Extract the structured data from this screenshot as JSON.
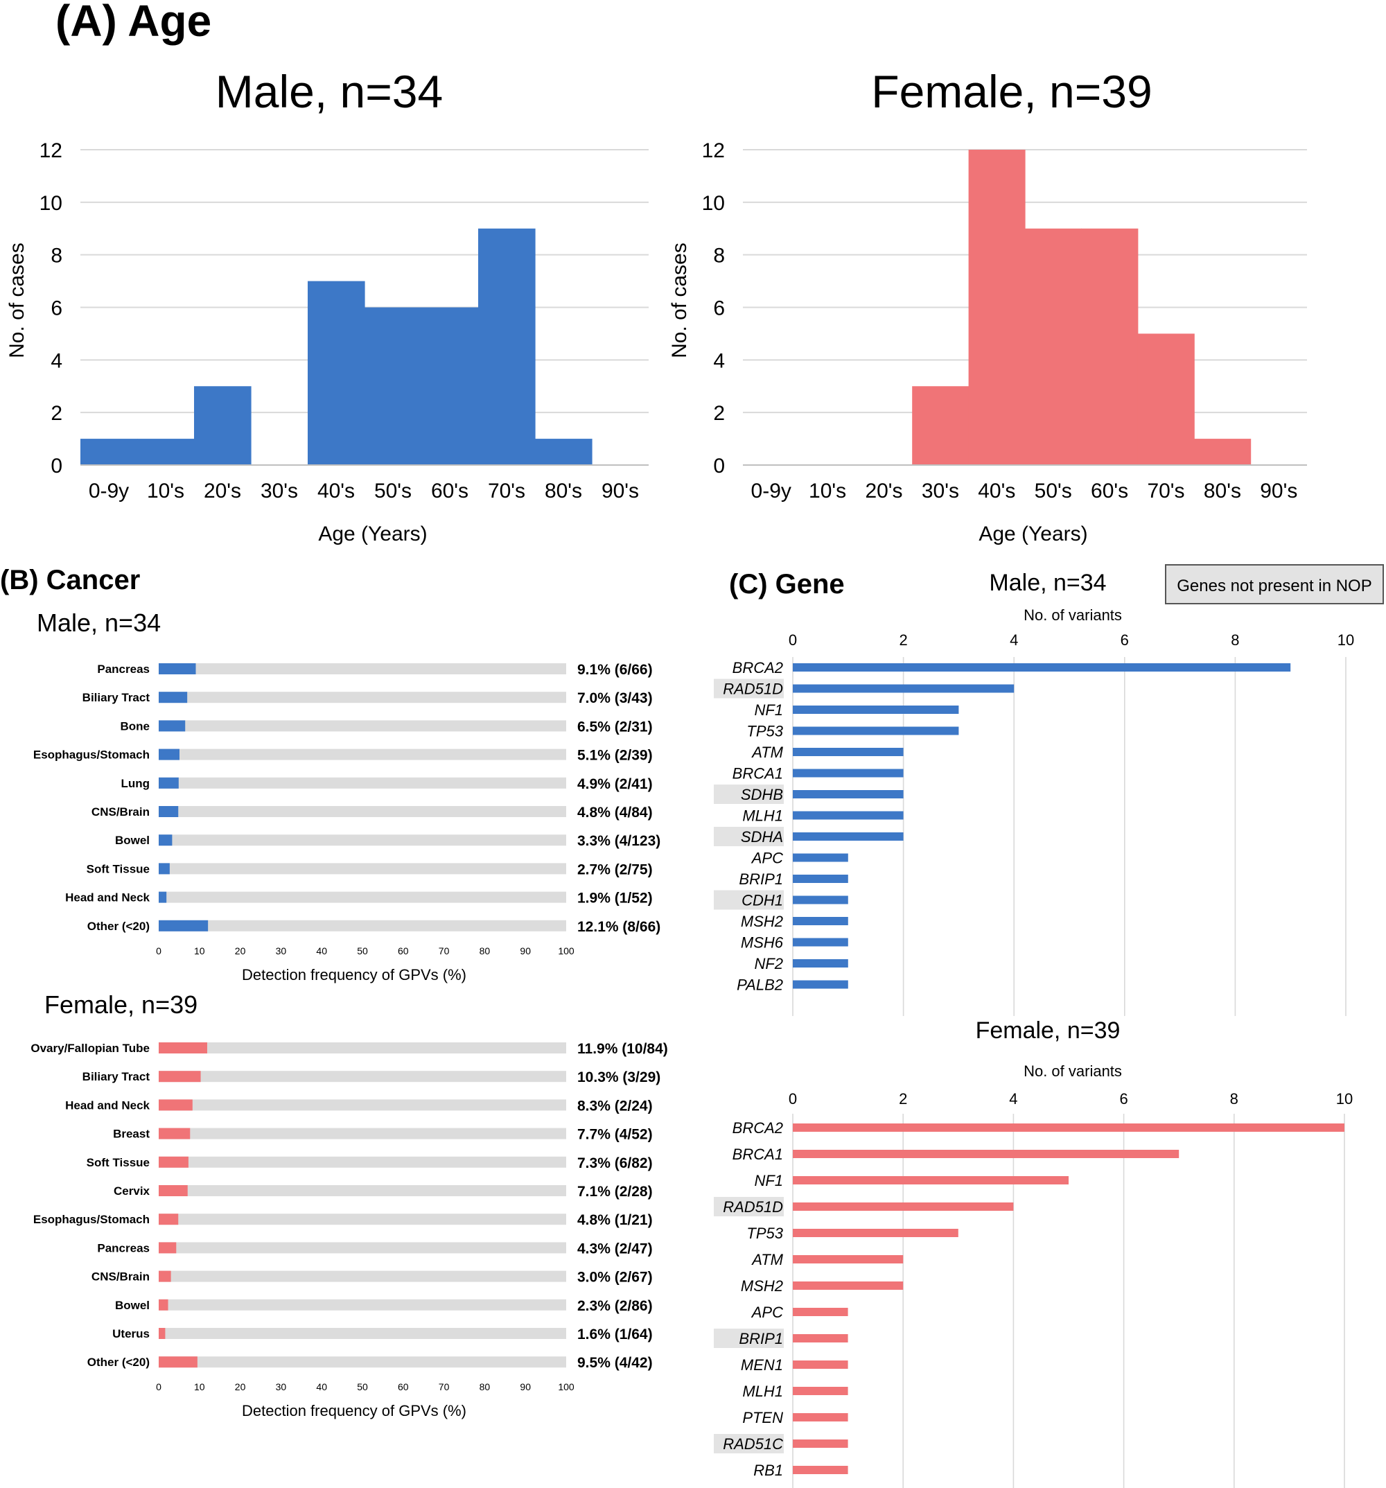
{
  "panel_a": {
    "label": "(A) Age"
  },
  "panel_b": {
    "label": "(B) Cancer"
  },
  "panel_c": {
    "label": "(C) Gene",
    "legend_box": "Genes not present in NOP"
  },
  "colors": {
    "male": "#3d78c7",
    "female": "#f07477",
    "track": "#dcdcdc",
    "grid": "#d9d9d9",
    "nop_highlight": "#e3e3e3"
  },
  "chart_data": [
    {
      "id": "age_male",
      "type": "bar",
      "title": "Male, n=34",
      "xlabel": "Age (Years)",
      "ylabel": "No. of cases",
      "ylim": [
        0,
        12
      ],
      "yticks": [
        "0",
        "2",
        "4",
        "6",
        "8",
        "10",
        "12"
      ],
      "categories": [
        "0-9y",
        "10's",
        "20's",
        "30's",
        "40's",
        "50's",
        "60's",
        "70's",
        "80's",
        "90's"
      ],
      "values": [
        1,
        1,
        3,
        0,
        7,
        6,
        6,
        9,
        1,
        0
      ],
      "grid": true
    },
    {
      "id": "age_female",
      "type": "bar",
      "title": "Female, n=39",
      "xlabel": "Age (Years)",
      "ylabel": "No. of cases",
      "ylim": [
        0,
        12
      ],
      "yticks": [
        "0",
        "2",
        "4",
        "6",
        "8",
        "10",
        "12"
      ],
      "categories": [
        "0-9y",
        "10's",
        "20's",
        "30's",
        "40's",
        "50's",
        "60's",
        "70's",
        "80's",
        "90's"
      ],
      "values": [
        0,
        0,
        0,
        3,
        12,
        9,
        9,
        5,
        1,
        0
      ],
      "grid": true
    },
    {
      "id": "cancer_male",
      "type": "bar",
      "orientation": "horizontal",
      "title": "Male, n=34",
      "xlabel": "Detection frequency of GPVs (%)",
      "xlim": [
        0,
        100
      ],
      "xticks": [
        "0",
        "10",
        "20",
        "30",
        "40",
        "50",
        "60",
        "70",
        "80",
        "90",
        "100"
      ],
      "categories": [
        "Pancreas",
        "Biliary Tract",
        "Bone",
        "Esophagus/Stomach",
        "Lung",
        "CNS/Brain",
        "Bowel",
        "Soft Tissue",
        "Head and Neck",
        "Other (<20)"
      ],
      "values": [
        9.1,
        7.0,
        6.5,
        5.1,
        4.9,
        4.8,
        3.3,
        2.7,
        1.9,
        12.1
      ],
      "data_labels": [
        "9.1% (6/66)",
        "7.0% (3/43)",
        "6.5% (2/31)",
        "5.1% (2/39)",
        "4.9% (2/41)",
        "4.8% (4/84)",
        "3.3% (4/123)",
        "2.7% (2/75)",
        "1.9% (1/52)",
        "12.1% (8/66)"
      ]
    },
    {
      "id": "cancer_female",
      "type": "bar",
      "orientation": "horizontal",
      "title": "Female, n=39",
      "xlabel": "Detection frequency of GPVs (%)",
      "xlim": [
        0,
        100
      ],
      "xticks": [
        "0",
        "10",
        "20",
        "30",
        "40",
        "50",
        "60",
        "70",
        "80",
        "90",
        "100"
      ],
      "categories": [
        "Ovary/Fallopian Tube",
        "Biliary Tract",
        "Head and Neck",
        "Breast",
        "Soft Tissue",
        "Cervix",
        "Esophagus/Stomach",
        "Pancreas",
        "CNS/Brain",
        "Bowel",
        "Uterus",
        "Other (<20)"
      ],
      "values": [
        11.9,
        10.3,
        8.3,
        7.7,
        7.3,
        7.1,
        4.8,
        4.3,
        3.0,
        2.3,
        1.6,
        9.5
      ],
      "data_labels": [
        "11.9% (10/84)",
        "10.3% (3/29)",
        "8.3% (2/24)",
        "7.7% (4/52)",
        "7.3% (6/82)",
        "7.1% (2/28)",
        "4.8% (1/21)",
        "4.3% (2/47)",
        "3.0% (2/67)",
        "2.3% (2/86)",
        "1.6% (1/64)",
        "9.5% (4/42)"
      ]
    },
    {
      "id": "gene_male",
      "type": "bar",
      "orientation": "horizontal",
      "title": "Male, n=34",
      "xlabel": "No. of variants",
      "xlim": [
        0,
        10
      ],
      "xaxis_position": "top",
      "xticks": [
        "0",
        "2",
        "4",
        "6",
        "8",
        "10"
      ],
      "categories": [
        "BRCA2",
        "RAD51D",
        "NF1",
        "TP53",
        "ATM",
        "BRCA1",
        "SDHB",
        "MLH1",
        "SDHA",
        "APC",
        "BRIP1",
        "CDH1",
        "MSH2",
        "MSH6",
        "NF2",
        "PALB2"
      ],
      "values": [
        9,
        4,
        3,
        3,
        2,
        2,
        2,
        2,
        2,
        1,
        1,
        1,
        1,
        1,
        1,
        1
      ],
      "not_in_nop": [
        "RAD51D",
        "SDHB",
        "SDHA",
        "CDH1"
      ],
      "grid": true
    },
    {
      "id": "gene_female",
      "type": "bar",
      "orientation": "horizontal",
      "title": "Female, n=39",
      "xlabel": "No. of variants",
      "xlim": [
        0,
        10
      ],
      "xaxis_position": "top",
      "xticks": [
        "0",
        "2",
        "4",
        "6",
        "8",
        "10"
      ],
      "categories": [
        "BRCA2",
        "BRCA1",
        "NF1",
        "RAD51D",
        "TP53",
        "ATM",
        "MSH2",
        "APC",
        "BRIP1",
        "MEN1",
        "MLH1",
        "PTEN",
        "RAD51C",
        "RB1"
      ],
      "values": [
        10,
        7,
        5,
        4,
        3,
        2,
        2,
        1,
        1,
        1,
        1,
        1,
        1,
        1
      ],
      "not_in_nop": [
        "RAD51D",
        "BRIP1",
        "RAD51C"
      ],
      "grid": true
    }
  ]
}
